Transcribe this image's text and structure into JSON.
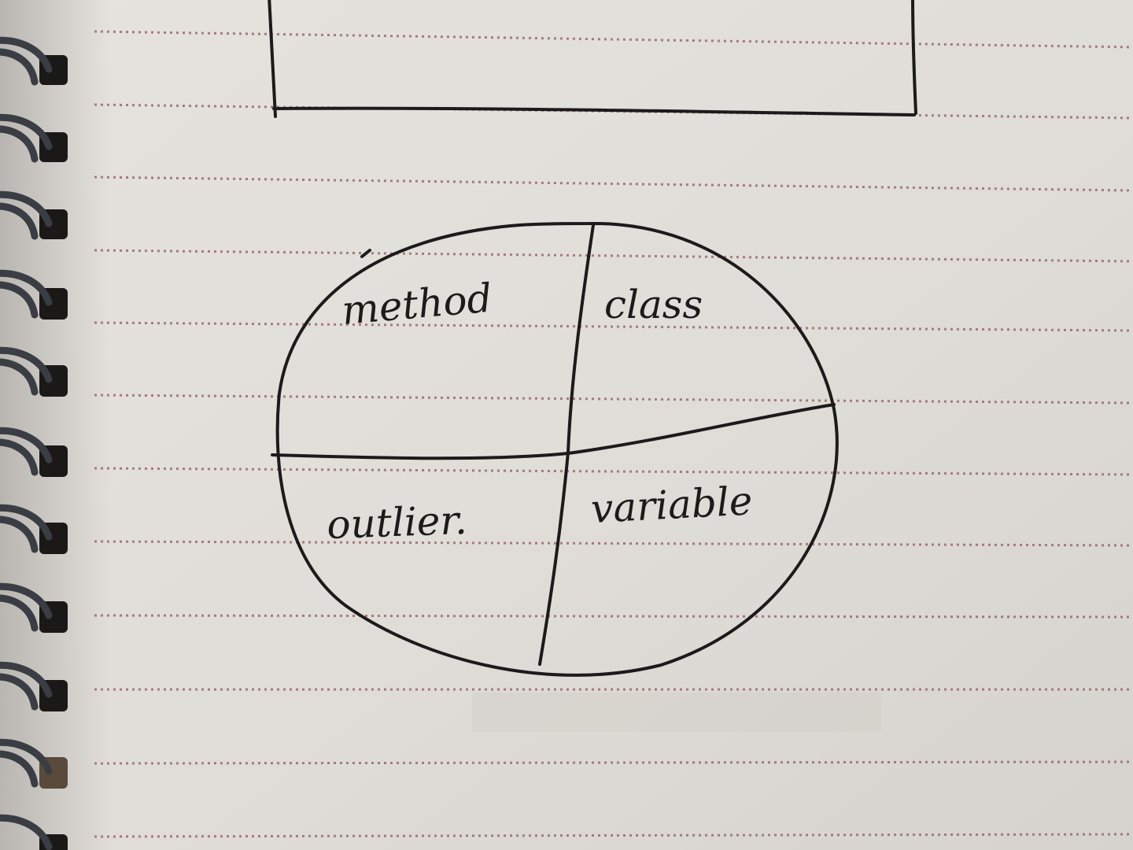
{
  "photo": {
    "subject": "spiral-notebook-page",
    "paper_color": "#e2dfda",
    "rule_color": "#9a6a6e",
    "ink_color": "#1c1a1a",
    "ring_color": "#3a3d44",
    "hole_color": "#1b1818"
  },
  "sketch": {
    "quadrants": [
      {
        "id": "top-left",
        "label": "method"
      },
      {
        "id": "top-right",
        "label": "class"
      },
      {
        "id": "bottom-left",
        "label": "outlier."
      },
      {
        "id": "bottom-right",
        "label": "variable"
      }
    ]
  }
}
